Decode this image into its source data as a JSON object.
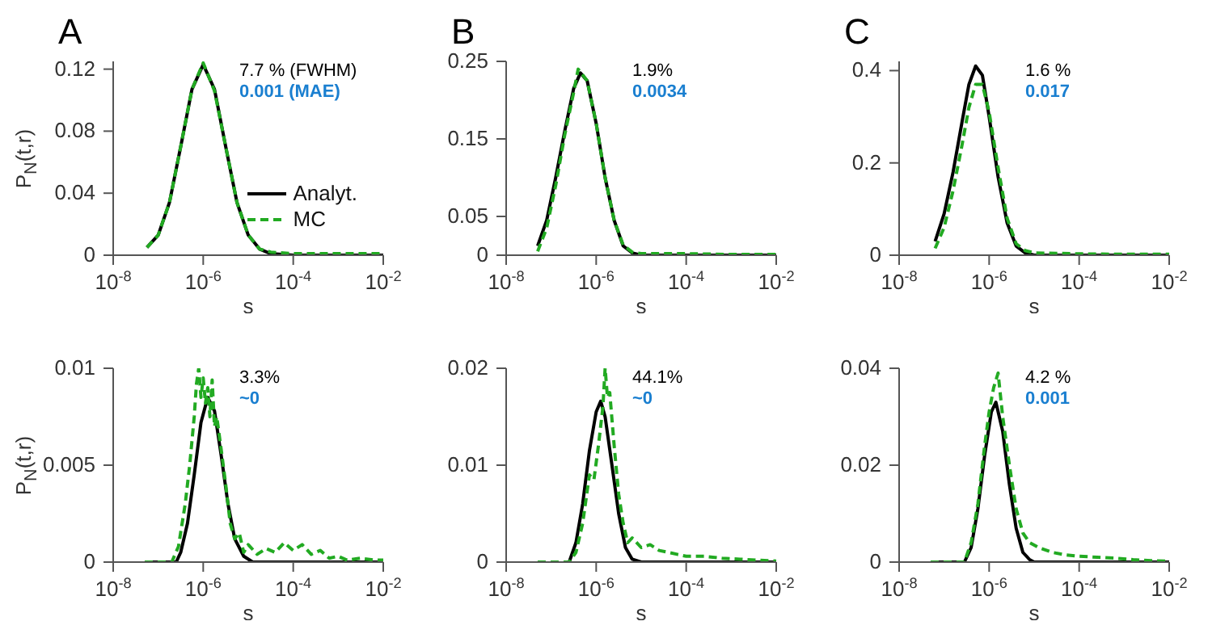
{
  "chart_data": [
    {
      "type": "line",
      "title": "A",
      "xlabel": "s",
      "ylabel": "P$_{N}$(t,r)",
      "log": "x",
      "legend": "bottom right",
      "annotations": [
        "7.7 % (FWHM)",
        "0.001 (MAE)"
      ],
      "xlim": [
        1e-08,
        0.01
      ],
      "xticks": [
        {
          "value": 1e-08,
          "label": "10$^{-8}$"
        },
        {
          "value": 1e-06,
          "label": "10$^{-6}$"
        },
        {
          "value": 0.0001,
          "label": "10$^{-4}$"
        },
        {
          "value": 0.01,
          "label": "10$^{-2}$"
        }
      ],
      "ylim": [
        0,
        0.125
      ],
      "yticks": [
        0,
        0.04,
        0.08,
        0.12
      ],
      "series": [
        {
          "name": "Analyt.",
          "color": "#000000",
          "line_style": "solid",
          "x": [
            5.62e-08,
            1e-07,
            1.78e-07,
            3.16e-07,
            5.62e-07,
            1e-06,
            1.78e-06,
            3.16e-06,
            5.62e-06,
            1e-05,
            1.78e-05,
            3.16e-05,
            0.0001,
            0.01
          ],
          "values": [
            0.005,
            0.013,
            0.034,
            0.07,
            0.107,
            0.123,
            0.107,
            0.07,
            0.034,
            0.013,
            0.004,
            0.001,
            0,
            0
          ]
        },
        {
          "name": "MC",
          "color": "#22aa22",
          "line_style": "dashed",
          "x": [
            5.62e-08,
            1e-07,
            1.78e-07,
            3.16e-07,
            5.62e-07,
            1e-06,
            1.78e-06,
            3.16e-06,
            5.62e-06,
            1e-05,
            1.78e-05,
            3.16e-05,
            0.0001,
            0.001,
            0.01
          ],
          "values": [
            0.005,
            0.013,
            0.034,
            0.07,
            0.107,
            0.124,
            0.106,
            0.07,
            0.034,
            0.013,
            0.004,
            0.002,
            0.001,
            0.001,
            0.001
          ]
        }
      ]
    },
    {
      "type": "line",
      "title": "B",
      "xlabel": "s",
      "log": "x",
      "annotations": [
        "1.9%",
        "0.0034"
      ],
      "xlim": [
        1e-08,
        0.01
      ],
      "xticks": [
        {
          "value": 1e-08,
          "label": "10$^{-8}$"
        },
        {
          "value": 1e-06,
          "label": "10$^{-6}$"
        },
        {
          "value": 0.0001,
          "label": "10$^{-4}$"
        },
        {
          "value": 0.01,
          "label": "10$^{-2}$"
        }
      ],
      "ylim": [
        0,
        0.25
      ],
      "yticks": [
        0,
        0.05,
        0.15,
        0.25
      ],
      "series": [
        {
          "color": "#000000",
          "line_style": "solid",
          "x": [
            5.01e-08,
            7.94e-08,
            1.26e-07,
            2e-07,
            3.16e-07,
            4.47e-07,
            6.31e-07,
            1e-06,
            1.58e-06,
            2.51e-06,
            3.98e-06,
            6.31e-06,
            1e-05,
            0.01
          ],
          "values": [
            0.012,
            0.045,
            0.1,
            0.16,
            0.215,
            0.235,
            0.225,
            0.17,
            0.1,
            0.045,
            0.012,
            0.003,
            0,
            0
          ]
        },
        {
          "color": "#22aa22",
          "line_style": "dashed",
          "x": [
            5.01e-08,
            7.94e-08,
            1.26e-07,
            2e-07,
            3.16e-07,
            3.98e-07,
            6.31e-07,
            1e-06,
            1.58e-06,
            2.51e-06,
            3.98e-06,
            6.31e-06,
            1e-05,
            0.0001,
            0.001,
            0.01
          ],
          "values": [
            0.005,
            0.035,
            0.09,
            0.155,
            0.21,
            0.24,
            0.225,
            0.17,
            0.1,
            0.045,
            0.013,
            0.004,
            0.002,
            0.002,
            0.001,
            0.001
          ]
        }
      ]
    },
    {
      "type": "line",
      "title": "C",
      "xlabel": "s",
      "log": "x",
      "annotations": [
        "1.6 %",
        "0.017"
      ],
      "xlim": [
        1e-08,
        0.01
      ],
      "xticks": [
        {
          "value": 1e-08,
          "label": "10$^{-8}$"
        },
        {
          "value": 1e-06,
          "label": "10$^{-6}$"
        },
        {
          "value": 0.0001,
          "label": "10$^{-4}$"
        },
        {
          "value": 0.01,
          "label": "10$^{-2}$"
        }
      ],
      "ylim": [
        0,
        0.42
      ],
      "yticks": [
        0,
        0.2,
        0.4
      ],
      "series": [
        {
          "color": "#000000",
          "line_style": "solid",
          "x": [
            6.31e-08,
            1e-07,
            1.58e-07,
            2.51e-07,
            3.55e-07,
            5.01e-07,
            7.08e-07,
            1e-06,
            1.58e-06,
            2.51e-06,
            3.98e-06,
            6.31e-06,
            1e-05,
            0.01
          ],
          "values": [
            0.03,
            0.09,
            0.18,
            0.29,
            0.37,
            0.41,
            0.39,
            0.3,
            0.17,
            0.07,
            0.02,
            0.005,
            0,
            0
          ]
        },
        {
          "color": "#22aa22",
          "line_style": "dashed",
          "x": [
            6.31e-08,
            1e-07,
            1.58e-07,
            2.51e-07,
            3.55e-07,
            5.01e-07,
            7.08e-07,
            1e-06,
            1.58e-06,
            2.51e-06,
            3.98e-06,
            6.31e-06,
            1e-05,
            0.0001,
            0.001,
            0.01
          ],
          "values": [
            0.015,
            0.06,
            0.14,
            0.24,
            0.32,
            0.37,
            0.37,
            0.31,
            0.19,
            0.08,
            0.025,
            0.01,
            0.005,
            0.003,
            0.002,
            0.002
          ]
        }
      ]
    },
    {
      "type": "line",
      "xlabel": "s",
      "ylabel": "P$_{N}$(t,r)",
      "log": "x",
      "annotations": [
        "3.3%",
        "~0"
      ],
      "xlim": [
        1e-08,
        0.01
      ],
      "xticks": [
        {
          "value": 1e-08,
          "label": "10$^{-8}$"
        },
        {
          "value": 1e-06,
          "label": "10$^{-6}$"
        },
        {
          "value": 0.0001,
          "label": "10$^{-4}$"
        },
        {
          "value": 0.01,
          "label": "10$^{-2}$"
        }
      ],
      "ylim": [
        0,
        0.01
      ],
      "yticks": [
        0,
        0.005,
        0.01
      ],
      "series": [
        {
          "color": "#000000",
          "line_style": "solid",
          "x": [
            5.01e-08,
            2.51e-07,
            3.16e-07,
            4.47e-07,
            6.31e-07,
            8.91e-07,
            1.26e-06,
            1.78e-06,
            2.51e-06,
            3.55e-06,
            5.01e-06,
            7.94e-06,
            1.26e-05,
            0.01
          ],
          "values": [
            0,
            0,
            0.0005,
            0.002,
            0.0045,
            0.0072,
            0.0085,
            0.0078,
            0.0055,
            0.003,
            0.0012,
            0.0003,
            0,
            0
          ]
        },
        {
          "color": "#22aa22",
          "line_style": "dashed",
          "x": [
            5.01e-08,
            2e-07,
            2.82e-07,
            3.98e-07,
            5.01e-07,
            6.31e-07,
            7.08e-07,
            7.94e-07,
            8.91e-07,
            1e-06,
            1.12e-06,
            1.26e-06,
            1.41e-06,
            1.58e-06,
            1.78e-06,
            2e-06,
            2.51e-06,
            3.16e-06,
            3.98e-06,
            5.01e-06,
            6.31e-06,
            7.94e-06,
            1e-05,
            1.58e-05,
            2.51e-05,
            3.98e-05,
            6.31e-05,
            0.0001,
            0.000158,
            0.000251,
            0.000398,
            0.000631,
            0.001,
            0.00158,
            0.00316,
            0.00631,
            0.01
          ],
          "values": [
            0,
            0,
            0.0008,
            0.003,
            0.005,
            0.0075,
            0.0092,
            0.01,
            0.0085,
            0.0095,
            0.0082,
            0.009,
            0.0075,
            0.0094,
            0.007,
            0.0075,
            0.0058,
            0.004,
            0.002,
            0.0012,
            0.0015,
            0.0005,
            0.0009,
            0.0004,
            0.0007,
            0.0005,
            0.001,
            0.0006,
            0.0009,
            0.0004,
            0.0006,
            0.0002,
            0.0003,
            0.0001,
            0.0002,
            0.0001,
            0.0001
          ]
        }
      ]
    },
    {
      "type": "line",
      "xlabel": "s",
      "log": "x",
      "annotations": [
        "44.1%",
        "~0"
      ],
      "xlim": [
        1e-08,
        0.01
      ],
      "xticks": [
        {
          "value": 1e-08,
          "label": "10$^{-8}$"
        },
        {
          "value": 1e-06,
          "label": "10$^{-6}$"
        },
        {
          "value": 0.0001,
          "label": "10$^{-4}$"
        },
        {
          "value": 0.01,
          "label": "10$^{-2}$"
        }
      ],
      "ylim": [
        0,
        0.02
      ],
      "yticks": [
        0,
        0.01,
        0.02
      ],
      "series": [
        {
          "color": "#000000",
          "line_style": "solid",
          "x": [
            2.51e-07,
            3.55e-07,
            5.01e-07,
            7.08e-07,
            1e-06,
            1.26e-06,
            1.58e-06,
            2.24e-06,
            3.16e-06,
            4.47e-06,
            6.31e-06,
            1e-05,
            0.01
          ],
          "values": [
            0,
            0.002,
            0.006,
            0.0115,
            0.0155,
            0.0166,
            0.015,
            0.01,
            0.005,
            0.0015,
            0.0003,
            0,
            0
          ]
        },
        {
          "color": "#22aa22",
          "line_style": "dashed",
          "x": [
            5.01e-08,
            2.51e-07,
            3.55e-07,
            5.01e-07,
            7.08e-07,
            8.91e-07,
            1.12e-06,
            1.41e-06,
            1.58e-06,
            1.78e-06,
            2e-06,
            2.51e-06,
            3.16e-06,
            3.98e-06,
            5.01e-06,
            6.31e-06,
            1e-05,
            1.58e-05,
            2.51e-05,
            3.98e-05,
            6.31e-05,
            0.0001,
            0.000251,
            0.000631,
            0.00158,
            0.00398,
            0.01
          ],
          "values": [
            0,
            0,
            0.001,
            0.004,
            0.009,
            0.0085,
            0.012,
            0.016,
            0.02,
            0.017,
            0.0175,
            0.012,
            0.007,
            0.004,
            0.002,
            0.0025,
            0.0015,
            0.0018,
            0.0012,
            0.001,
            0.0008,
            0.0006,
            0.0006,
            0.0004,
            0.0003,
            0.0002,
            0.0001
          ]
        }
      ]
    },
    {
      "type": "line",
      "xlabel": "s",
      "log": "x",
      "annotations": [
        "4.2 %",
        "0.001"
      ],
      "xlim": [
        1e-08,
        0.01
      ],
      "xticks": [
        {
          "value": 1e-08,
          "label": "10$^{-8}$"
        },
        {
          "value": 1e-06,
          "label": "10$^{-6}$"
        },
        {
          "value": 0.0001,
          "label": "10$^{-4}$"
        },
        {
          "value": 0.01,
          "label": "10$^{-2}$"
        }
      ],
      "ylim": [
        0,
        0.04
      ],
      "yticks": [
        0,
        0.02,
        0.04
      ],
      "series": [
        {
          "color": "#000000",
          "line_style": "solid",
          "x": [
            5.01e-08,
            2.82e-07,
            3.98e-07,
            5.62e-07,
            7.94e-07,
            1.12e-06,
            1.41e-06,
            2e-06,
            2.82e-06,
            3.98e-06,
            5.62e-06,
            7.94e-06,
            1e-05,
            0.01
          ],
          "values": [
            0,
            0,
            0.003,
            0.011,
            0.022,
            0.031,
            0.033,
            0.027,
            0.016,
            0.007,
            0.002,
            0.0005,
            0,
            0
          ]
        },
        {
          "color": "#22aa22",
          "line_style": "dashed",
          "x": [
            5.01e-08,
            2.82e-07,
            3.98e-07,
            5.62e-07,
            7.94e-07,
            1e-06,
            1.26e-06,
            1.58e-06,
            2e-06,
            2.82e-06,
            3.98e-06,
            5.62e-06,
            7.94e-06,
            1.26e-05,
            2.51e-05,
            5.01e-05,
            0.0001,
            0.000251,
            0.000631,
            0.00158,
            0.00398,
            0.01
          ],
          "values": [
            0,
            0,
            0.004,
            0.012,
            0.024,
            0.031,
            0.036,
            0.039,
            0.03,
            0.02,
            0.011,
            0.006,
            0.004,
            0.003,
            0.002,
            0.0015,
            0.0012,
            0.001,
            0.0008,
            0.0005,
            0.0003,
            0.0002
          ]
        }
      ]
    }
  ]
}
